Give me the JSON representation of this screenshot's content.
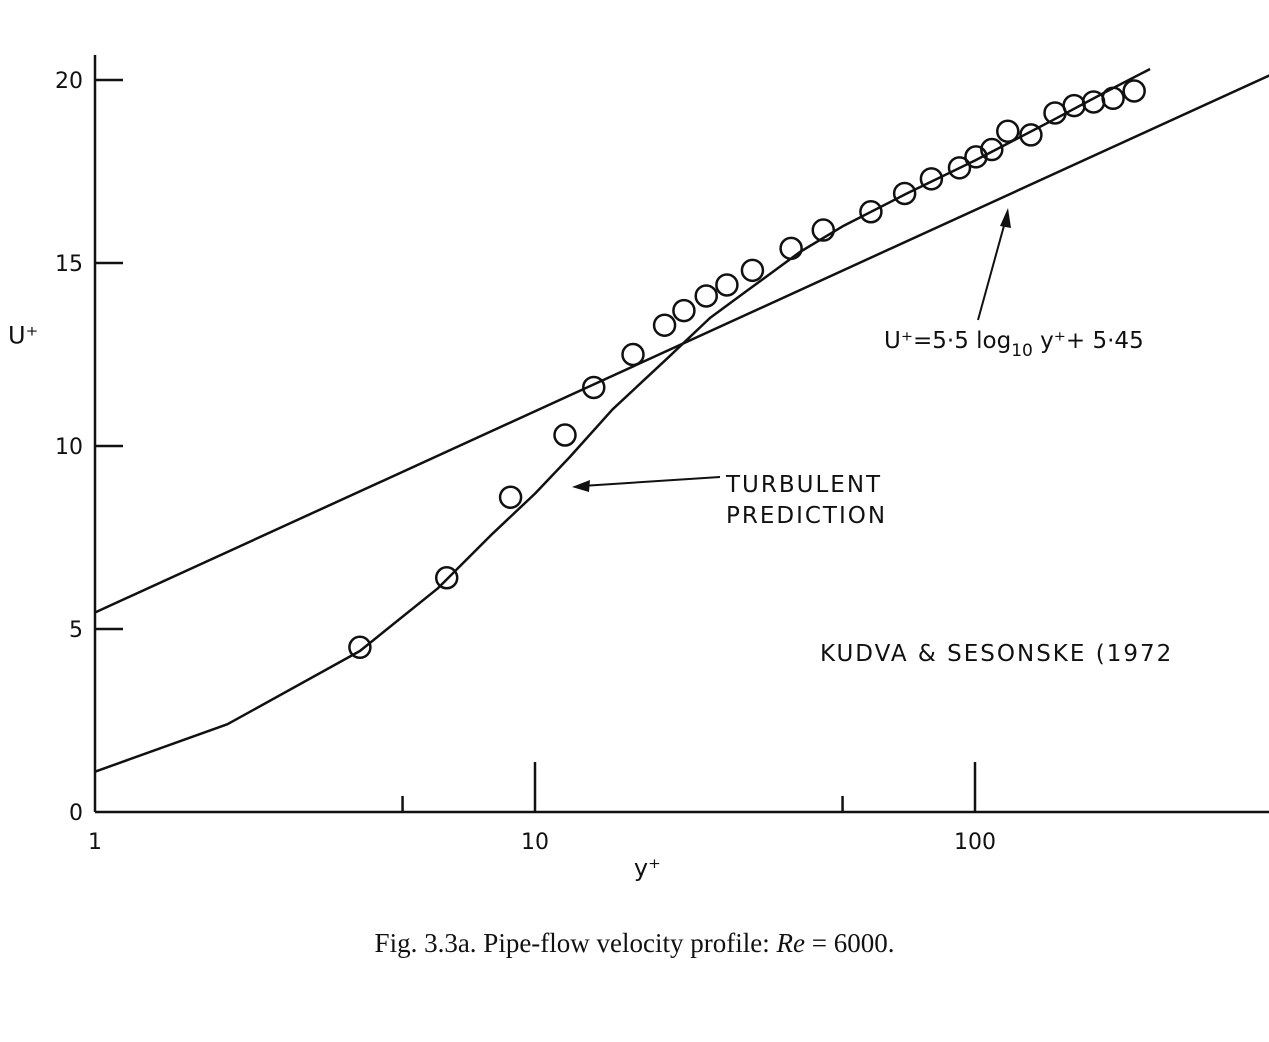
{
  "chart_data": {
    "type": "line",
    "xscale": "log",
    "xlim": [
      1,
      500
    ],
    "ylim": [
      0,
      20
    ],
    "xlabel": "y⁺",
    "ylabel": "U⁺",
    "x_ticks_labeled": [
      "1",
      "10",
      "100"
    ],
    "y_ticks": [
      "0",
      "5",
      "10",
      "15",
      "20"
    ],
    "grid": false,
    "series": [
      {
        "name": "U⁺=5·5 log₁₀ y⁺+ 5·45",
        "x": [
          1,
          500
        ],
        "y": [
          5.45,
          20.29
        ]
      },
      {
        "name": "TURBULENT PREDICTION",
        "x": [
          1,
          2,
          4,
          6,
          8,
          10,
          12,
          15,
          20,
          25,
          30,
          40,
          50,
          70,
          100,
          150,
          200,
          250
        ],
        "y": [
          1.1,
          2.4,
          4.4,
          6.1,
          7.6,
          8.7,
          9.7,
          11.0,
          12.4,
          13.5,
          14.2,
          15.3,
          16.0,
          16.9,
          17.8,
          18.9,
          19.7,
          20.3
        ]
      },
      {
        "name": "KUDVA & SESONSKE (1972",
        "type": "scatter",
        "x": [
          4.0,
          6.3,
          8.8,
          11.7,
          13.6,
          16.7,
          19.7,
          21.8,
          24.5,
          27.3,
          31.2,
          38.2,
          45.2,
          58.0,
          69.2,
          79.6,
          92.2,
          100.5,
          109.2,
          118.7,
          134.0,
          152.0,
          168.0,
          186.0,
          206.0,
          230.0
        ],
        "y": [
          4.5,
          6.4,
          8.6,
          10.3,
          11.6,
          12.5,
          13.3,
          13.7,
          14.1,
          14.4,
          14.8,
          15.4,
          15.9,
          16.4,
          16.9,
          17.3,
          17.6,
          17.9,
          18.1,
          18.6,
          18.5,
          19.1,
          19.3,
          19.4,
          19.5,
          19.7
        ]
      }
    ],
    "annotations": {
      "turbulent_line1": "TURBULENT",
      "turbulent_line2": "PREDICTION",
      "formula_main": "U⁺=5·5 log",
      "formula_sub": "10",
      "formula_tail": " y⁺+ 5·45",
      "source": "KUDVA & SESONSKE (1972"
    }
  },
  "caption": "Fig. 3.3a. Pipe-flow velocity profile: Re = 6000."
}
